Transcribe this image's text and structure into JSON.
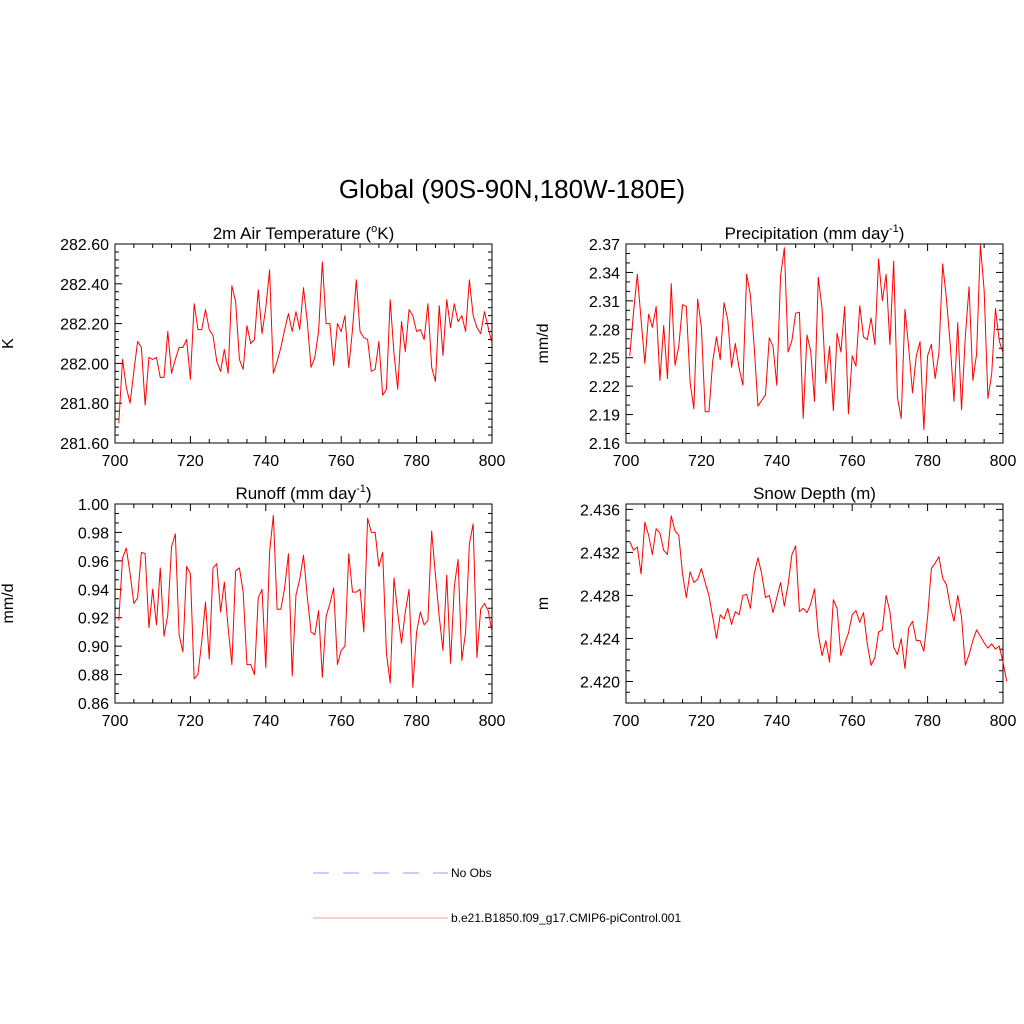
{
  "figure": {
    "title": "Global (90S-90N,180W-180E)",
    "series_color": "#ff0000",
    "obs_color": "#9999ff"
  },
  "legend": {
    "items": [
      {
        "label": "No Obs",
        "style": "dashed",
        "color": "#9999ff"
      },
      {
        "label": "b.e21.B1850.f09_g17.CMIP6-piControl.001",
        "style": "solid",
        "color": "#ff6666"
      }
    ]
  },
  "chart_data": [
    {
      "type": "line",
      "title_main": "2m Air Temperature (",
      "title_sup_pre": "o",
      "title_mid": "K)",
      "title_sup_post": "",
      "title_end": "",
      "ylabel": "K",
      "xlim": [
        700,
        800
      ],
      "ylim": [
        281.6,
        282.6
      ],
      "xticks": [
        700,
        720,
        740,
        760,
        780,
        800
      ],
      "yticks": [
        "281.60",
        "281.80",
        "282.00",
        "282.20",
        "282.40",
        "282.60"
      ],
      "yticks_values": [
        281.6,
        281.8,
        282.0,
        282.2,
        282.4,
        282.6
      ],
      "yminor": 4,
      "x_start": 701,
      "values": [
        281.7,
        282.02,
        281.88,
        281.8,
        281.96,
        282.11,
        282.08,
        281.79,
        282.03,
        282.02,
        282.03,
        281.93,
        281.93,
        282.16,
        281.95,
        282.02,
        282.08,
        282.08,
        282.12,
        281.92,
        282.3,
        282.17,
        282.17,
        282.27,
        282.17,
        282.14,
        282.01,
        281.96,
        282.07,
        281.95,
        282.39,
        282.31,
        282.02,
        281.97,
        282.19,
        282.1,
        282.12,
        282.37,
        282.15,
        282.28,
        282.47,
        281.95,
        282.01,
        282.08,
        282.17,
        282.25,
        282.16,
        282.26,
        282.17,
        282.38,
        282.21,
        281.98,
        282.03,
        282.16,
        282.51,
        282.2,
        282.2,
        281.99,
        282.2,
        282.16,
        282.24,
        281.98,
        282.17,
        282.42,
        282.16,
        282.13,
        282.12,
        281.96,
        281.97,
        282.11,
        281.84,
        281.87,
        282.32,
        282.05,
        281.87,
        282.21,
        282.06,
        282.27,
        282.24,
        282.16,
        282.17,
        282.12,
        282.3,
        281.98,
        281.91,
        282.29,
        282.04,
        282.32,
        282.18,
        282.3,
        282.21,
        282.24,
        282.16,
        282.42,
        282.24,
        282.18,
        282.15,
        282.26,
        282.18,
        282.1
      ]
    },
    {
      "type": "line",
      "title_main": "Precipitation (mm day",
      "title_sup_pre": "",
      "title_mid": "",
      "title_sup_post": "-1",
      "title_end": ")",
      "ylabel": "mm/d",
      "xlim": [
        700,
        800
      ],
      "ylim": [
        2.16,
        2.37
      ],
      "xticks": [
        700,
        720,
        740,
        760,
        780,
        800
      ],
      "yticks": [
        "2.16",
        "2.19",
        "2.22",
        "2.25",
        "2.28",
        "2.31",
        "2.34",
        "2.37"
      ],
      "yticks_values": [
        2.16,
        2.19,
        2.22,
        2.25,
        2.28,
        2.31,
        2.34,
        2.37
      ],
      "yminor": 2,
      "x_start": 701,
      "values": [
        2.252,
        2.298,
        2.338,
        2.29,
        2.244,
        2.296,
        2.282,
        2.304,
        2.226,
        2.284,
        2.228,
        2.328,
        2.242,
        2.262,
        2.306,
        2.304,
        2.224,
        2.196,
        2.312,
        2.282,
        2.193,
        2.193,
        2.246,
        2.272,
        2.248,
        2.308,
        2.29,
        2.24,
        2.265,
        2.239,
        2.221,
        2.338,
        2.316,
        2.262,
        2.199,
        2.205,
        2.211,
        2.271,
        2.262,
        2.221,
        2.336,
        2.366,
        2.256,
        2.268,
        2.297,
        2.298,
        2.186,
        2.274,
        2.257,
        2.204,
        2.335,
        2.302,
        2.223,
        2.262,
        2.194,
        2.276,
        2.256,
        2.304,
        2.191,
        2.252,
        2.241,
        2.305,
        2.272,
        2.269,
        2.292,
        2.264,
        2.354,
        2.31,
        2.338,
        2.264,
        2.352,
        2.208,
        2.186,
        2.301,
        2.26,
        2.213,
        2.252,
        2.267,
        2.174,
        2.252,
        2.264,
        2.228,
        2.255,
        2.349,
        2.312,
        2.264,
        2.204,
        2.287,
        2.195,
        2.272,
        2.325,
        2.226,
        2.254,
        2.369,
        2.321,
        2.207,
        2.233,
        2.302,
        2.268,
        2.255
      ]
    },
    {
      "type": "line",
      "title_main": "Runoff (mm day",
      "title_sup_pre": "",
      "title_mid": "",
      "title_sup_post": "-1",
      "title_end": ")",
      "ylabel": "mm/d",
      "xlim": [
        700,
        800
      ],
      "ylim": [
        0.86,
        1.0
      ],
      "xticks": [
        700,
        720,
        740,
        760,
        780,
        800
      ],
      "yticks": [
        "0.86",
        "0.88",
        "0.90",
        "0.92",
        "0.94",
        "0.96",
        "0.98",
        "1.00"
      ],
      "yticks_values": [
        0.86,
        0.88,
        0.9,
        0.92,
        0.94,
        0.96,
        0.98,
        1.0
      ],
      "yminor": 2,
      "x_start": 701,
      "values": [
        0.918,
        0.962,
        0.969,
        0.951,
        0.93,
        0.934,
        0.966,
        0.965,
        0.913,
        0.94,
        0.915,
        0.955,
        0.907,
        0.922,
        0.97,
        0.979,
        0.908,
        0.896,
        0.956,
        0.951,
        0.877,
        0.88,
        0.903,
        0.931,
        0.891,
        0.955,
        0.958,
        0.924,
        0.945,
        0.913,
        0.887,
        0.953,
        0.955,
        0.938,
        0.887,
        0.887,
        0.88,
        0.934,
        0.94,
        0.885,
        0.966,
        0.992,
        0.926,
        0.926,
        0.941,
        0.965,
        0.879,
        0.936,
        0.947,
        0.964,
        0.935,
        0.91,
        0.908,
        0.925,
        0.878,
        0.921,
        0.93,
        0.941,
        0.887,
        0.897,
        0.9,
        0.965,
        0.938,
        0.938,
        0.94,
        0.91,
        0.99,
        0.98,
        0.98,
        0.956,
        0.966,
        0.895,
        0.874,
        0.948,
        0.923,
        0.902,
        0.924,
        0.94,
        0.871,
        0.91,
        0.924,
        0.915,
        0.918,
        0.981,
        0.95,
        0.921,
        0.897,
        0.95,
        0.888,
        0.942,
        0.961,
        0.89,
        0.91,
        0.972,
        0.986,
        0.892,
        0.926,
        0.93,
        0.925,
        0.91
      ]
    },
    {
      "type": "line",
      "title_main": "Snow Depth (m)",
      "title_sup_pre": "",
      "title_mid": "",
      "title_sup_post": "",
      "title_end": "",
      "ylabel": "m",
      "xlim": [
        700,
        800
      ],
      "ylim": [
        2.418,
        2.4365
      ],
      "xticks": [
        700,
        720,
        740,
        760,
        780,
        800
      ],
      "yticks": [
        "2.420",
        "2.424",
        "2.428",
        "2.432",
        "2.436"
      ],
      "yticks_values": [
        2.42,
        2.424,
        2.428,
        2.432,
        2.436
      ],
      "yminor": 3,
      "x_start": 701,
      "values": [
        2.433,
        2.4322,
        2.4325,
        2.43,
        2.4348,
        2.4336,
        2.4318,
        2.4342,
        2.4338,
        2.4322,
        2.4318,
        2.4354,
        2.434,
        2.4336,
        2.43,
        2.4278,
        2.4302,
        2.4292,
        2.4295,
        2.4305,
        2.4292,
        2.428,
        2.426,
        2.424,
        2.4262,
        2.4258,
        2.4268,
        2.4253,
        2.4265,
        2.4262,
        2.428,
        2.4281,
        2.4268,
        2.43,
        2.4315,
        2.43,
        2.4278,
        2.428,
        2.4264,
        2.4278,
        2.4292,
        2.427,
        2.429,
        2.4318,
        2.4326,
        2.4265,
        2.4268,
        2.4264,
        2.4272,
        2.4286,
        2.4244,
        2.4224,
        2.4238,
        2.4218,
        2.4276,
        2.4268,
        2.4224,
        2.4235,
        2.4245,
        2.4262,
        2.4266,
        2.4255,
        2.4264,
        2.4235,
        2.4215,
        2.4222,
        2.4246,
        2.4248,
        2.428,
        2.4265,
        2.4232,
        2.4225,
        2.424,
        2.4212,
        2.425,
        2.4256,
        2.4238,
        2.4238,
        2.4228,
        2.426,
        2.4305,
        2.431,
        2.4316,
        2.4296,
        2.429,
        2.427,
        2.4256,
        2.428,
        2.426,
        2.4215,
        2.4225,
        2.4238,
        2.4248,
        2.4242,
        2.4236,
        2.4231,
        2.4235,
        2.423,
        2.4233,
        2.4218,
        2.42
      ]
    }
  ]
}
